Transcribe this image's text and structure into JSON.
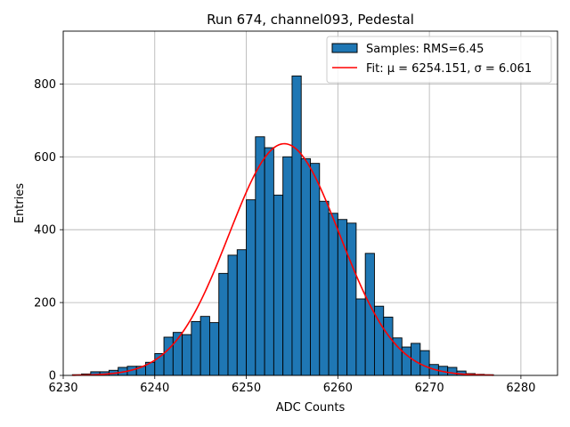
{
  "chart_data": {
    "type": "bar",
    "title": "Run 674, channel093, Pedestal",
    "xlabel": "ADC Counts",
    "ylabel": "Entries",
    "xlim": [
      6230,
      6284
    ],
    "ylim": [
      0,
      945
    ],
    "x_ticks": [
      6230,
      6240,
      6250,
      6260,
      6270,
      6280
    ],
    "y_ticks": [
      0,
      200,
      400,
      600,
      800
    ],
    "grid": true,
    "legend_position": "top-right",
    "bin_width": 1,
    "bins": {
      "left_edges": [
        6231,
        6232,
        6233,
        6234,
        6235,
        6236,
        6237,
        6238,
        6239,
        6240,
        6241,
        6242,
        6243,
        6244,
        6245,
        6246,
        6247,
        6248,
        6249,
        6250,
        6251,
        6252,
        6253,
        6254,
        6255,
        6256,
        6257,
        6258,
        6259,
        6260,
        6261,
        6262,
        6263,
        6264,
        6265,
        6266,
        6267,
        6268,
        6269,
        6270,
        6271,
        6272,
        6273,
        6274,
        6275,
        6276
      ],
      "counts": [
        2,
        4,
        10,
        10,
        14,
        22,
        25,
        25,
        36,
        60,
        105,
        118,
        112,
        148,
        162,
        145,
        280,
        330,
        345,
        482,
        655,
        625,
        495,
        600,
        822,
        595,
        582,
        478,
        445,
        428,
        418,
        210,
        335,
        190,
        160,
        103,
        78,
        88,
        68,
        30,
        25,
        22,
        12,
        5,
        3,
        2
      ]
    },
    "series": [
      {
        "name": "Samples: RMS=6.45",
        "kind": "histogram",
        "color": "#1f77b4",
        "edge_color": "#000000"
      },
      {
        "name": "Fit: μ = 6254.151, σ = 6.061",
        "kind": "gaussian_fit",
        "color": "#ff0000",
        "mu": 6254.151,
        "sigma": 6.061,
        "amplitude": 636,
        "x_range": [
          6231,
          6277
        ]
      }
    ]
  }
}
